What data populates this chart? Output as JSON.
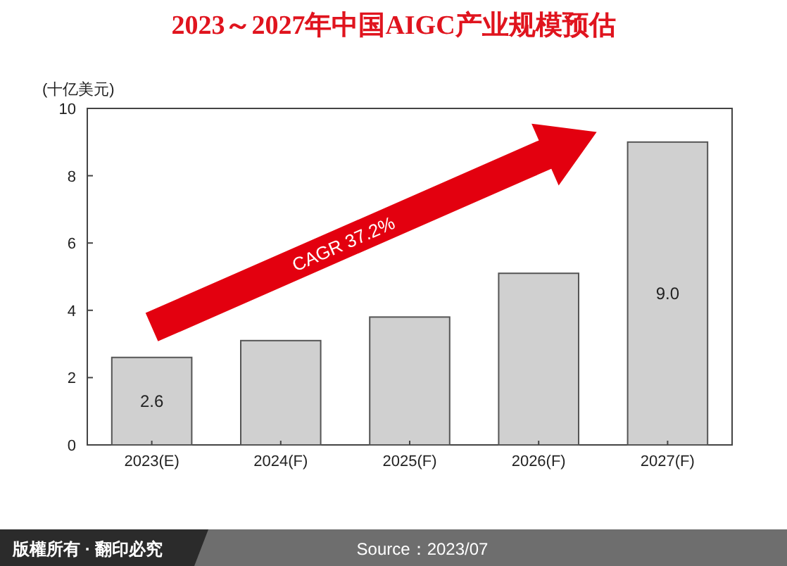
{
  "chart_data": {
    "type": "bar",
    "title": "2023～2027年中国AIGC产业规模预估",
    "ylabel": "(十亿美元)",
    "categories": [
      "2023(E)",
      "2024(F)",
      "2025(F)",
      "2026(F)",
      "2027(F)"
    ],
    "values": [
      2.6,
      3.1,
      3.8,
      5.1,
      9.0
    ],
    "value_labels": [
      "2.6",
      null,
      null,
      null,
      "9.0"
    ],
    "color": "#d0d0d0",
    "ylim": [
      0,
      10
    ],
    "yticks": [
      0,
      2,
      4,
      6,
      8,
      10
    ],
    "annotations": [
      "CAGR 37.2%",
      "版權所有 · 翻印必究",
      "Source：2023/07"
    ]
  }
}
